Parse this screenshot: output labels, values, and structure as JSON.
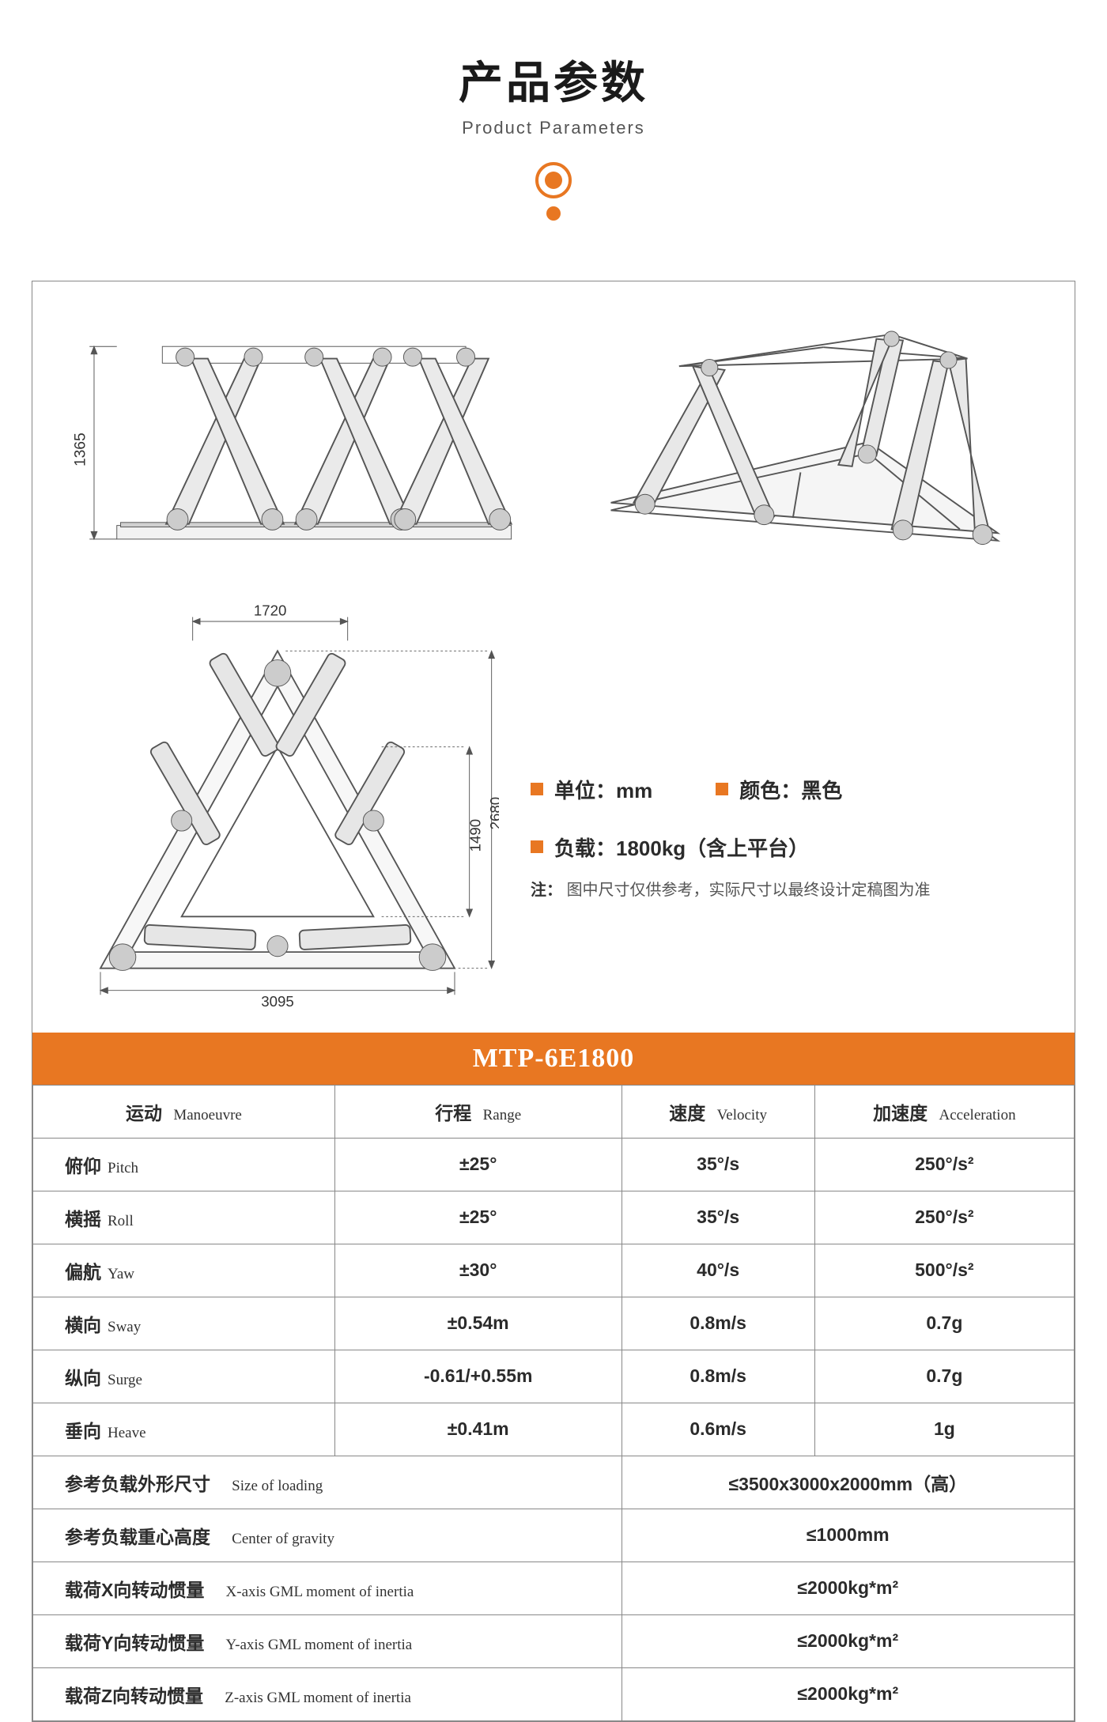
{
  "header": {
    "title_cn": "产品参数",
    "title_en": "Product Parameters"
  },
  "colors": {
    "accent": "#e87722",
    "text": "#2b2b2b",
    "border": "#888888"
  },
  "dimensions": {
    "height": "1365",
    "top_width": "1720",
    "inner_height": "1490",
    "outer_height": "2680",
    "base_width": "3095"
  },
  "info": {
    "unit_label": "单位：mm",
    "color_label": "颜色：黑色",
    "load_label": "负载：1800kg（含上平台）",
    "note_prefix": "注：",
    "note_text": "图中尺寸仅供参考，实际尺寸以最终设计定稿图为准"
  },
  "model": "MTP-6E1800",
  "table": {
    "headers": {
      "manoeuvre_cn": "运动",
      "manoeuvre_en": "Manoeuvre",
      "range_cn": "行程",
      "range_en": "Range",
      "velocity_cn": "速度",
      "velocity_en": "Velocity",
      "accel_cn": "加速度",
      "accel_en": "Acceleration"
    },
    "rows": [
      {
        "m_cn": "俯仰",
        "m_en": "Pitch",
        "range": "±25°",
        "vel": "35°/s",
        "acc": "250°/s²"
      },
      {
        "m_cn": "横摇",
        "m_en": "Roll",
        "range": "±25°",
        "vel": "35°/s",
        "acc": "250°/s²"
      },
      {
        "m_cn": "偏航",
        "m_en": "Yaw",
        "range": "±30°",
        "vel": "40°/s",
        "acc": "500°/s²"
      },
      {
        "m_cn": "横向",
        "m_en": "Sway",
        "range": "±0.54m",
        "vel": "0.8m/s",
        "acc": "0.7g"
      },
      {
        "m_cn": "纵向",
        "m_en": "Surge",
        "range": "-0.61/+0.55m",
        "vel": "0.8m/s",
        "acc": "0.7g"
      },
      {
        "m_cn": "垂向",
        "m_en": "Heave",
        "range": "±0.41m",
        "vel": "0.6m/s",
        "acc": "1g"
      }
    ],
    "footer": [
      {
        "cn": "参考负载外形尺寸",
        "en": "Size of loading",
        "val": "≤3500x3000x2000mm（高）"
      },
      {
        "cn": "参考负载重心高度",
        "en": "Center of gravity",
        "val": "≤1000mm"
      },
      {
        "cn": "载荷X向转动惯量",
        "en": "X-axis GML moment of inertia",
        "val": "≤2000kg*m²"
      },
      {
        "cn": "载荷Y向转动惯量",
        "en": "Y-axis GML moment of inertia",
        "val": "≤2000kg*m²"
      },
      {
        "cn": "载荷Z向转动惯量",
        "en": "Z-axis GML moment of inertia",
        "val": "≤2000kg*m²"
      }
    ]
  }
}
